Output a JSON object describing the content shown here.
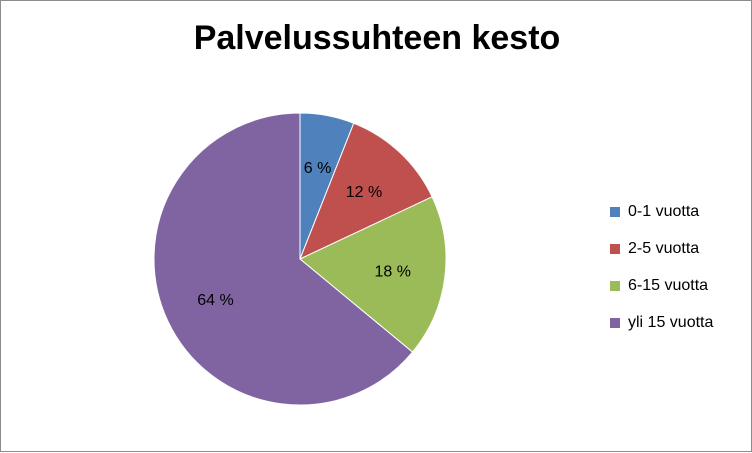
{
  "chart_data": {
    "type": "pie",
    "title": "Palvelussuhteen kesto",
    "categories": [
      "0-1 vuotta",
      "2-5 vuotta",
      "6-15 vuotta",
      "yli 15 vuotta"
    ],
    "values": [
      6,
      12,
      18,
      64
    ],
    "data_labels": [
      "6 %",
      "12 %",
      "18 %",
      "64 %"
    ],
    "colors": [
      "#4f81bd",
      "#c0504d",
      "#9bbb59",
      "#8064a2"
    ],
    "start_angle_deg": 0,
    "direction": "clockwise",
    "legend_position": "right"
  }
}
